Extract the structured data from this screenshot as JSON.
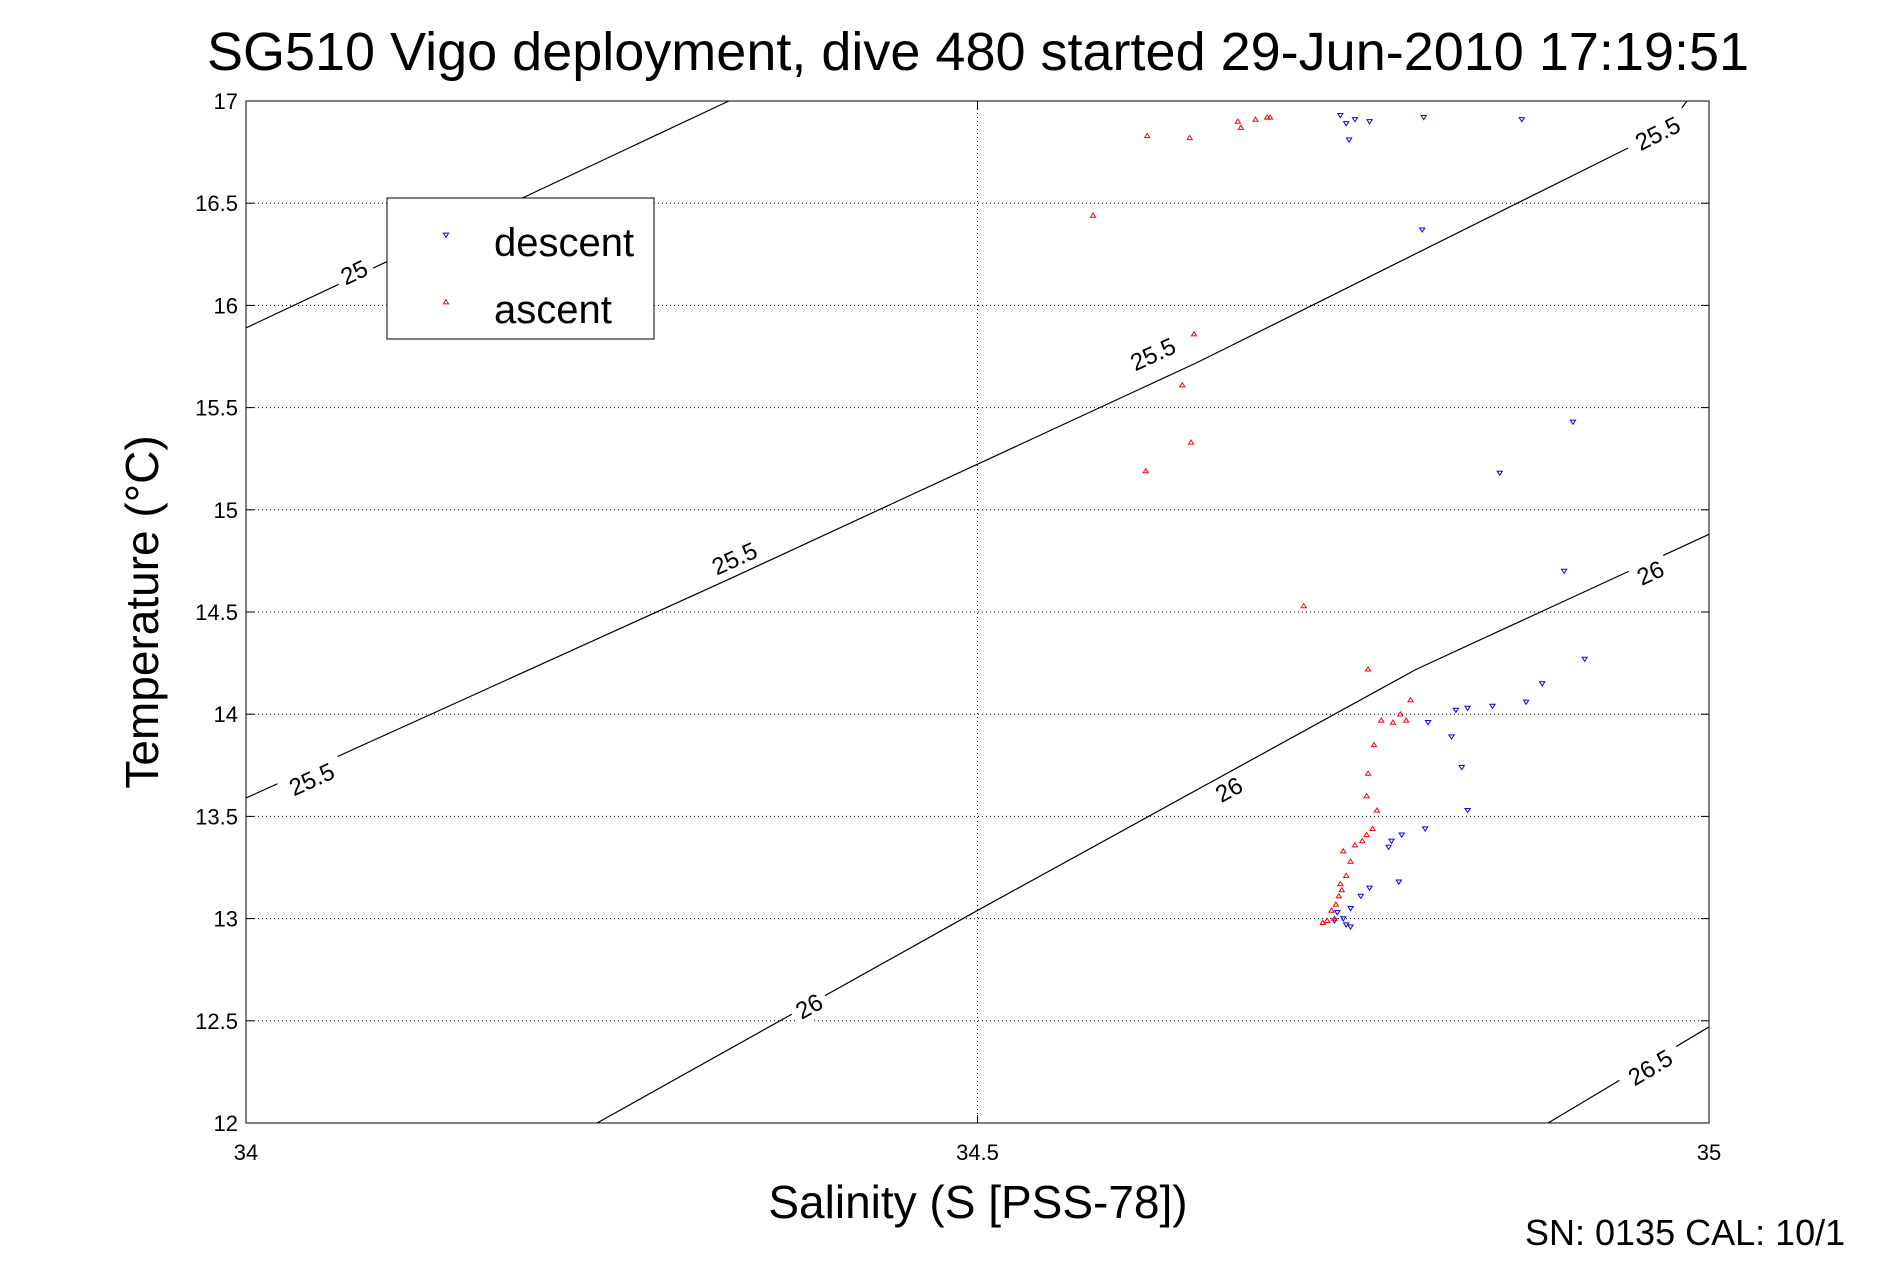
{
  "chart_data": {
    "type": "scatter",
    "title": "SG510 Vigo deployment, dive 480 started 29-Jun-2010 17:19:51",
    "xlabel": "Salinity (S [PSS-78])",
    "ylabel": "Temperature (°C)",
    "xlim": [
      34,
      35
    ],
    "ylim": [
      12,
      17
    ],
    "xticks": [
      "34",
      "34.5",
      "35"
    ],
    "yticks": [
      "12",
      "12.5",
      "13",
      "13.5",
      "14",
      "14.5",
      "15",
      "15.5",
      "16",
      "16.5",
      "17"
    ],
    "grid": true,
    "legend_position": "top-left",
    "footer": "SN: 0135  CAL: 10/1",
    "series": [
      {
        "name": "descent",
        "color": "#0000ff",
        "marker": "triangle-down",
        "points": [
          [
            34.748,
            16.93
          ],
          [
            34.758,
            16.91
          ],
          [
            34.752,
            16.89
          ],
          [
            34.768,
            16.9
          ],
          [
            34.754,
            16.81
          ],
          [
            34.805,
            16.92
          ],
          [
            34.872,
            16.91
          ],
          [
            34.804,
            16.37
          ],
          [
            34.907,
            15.43
          ],
          [
            34.857,
            15.18
          ],
          [
            34.901,
            14.7
          ],
          [
            34.915,
            14.27
          ],
          [
            34.886,
            14.15
          ],
          [
            34.875,
            14.06
          ],
          [
            34.852,
            14.04
          ],
          [
            34.835,
            14.03
          ],
          [
            34.827,
            14.02
          ],
          [
            34.808,
            13.96
          ],
          [
            34.824,
            13.89
          ],
          [
            34.831,
            13.74
          ],
          [
            34.835,
            13.53
          ],
          [
            34.806,
            13.44
          ],
          [
            34.79,
            13.41
          ],
          [
            34.783,
            13.38
          ],
          [
            34.781,
            13.35
          ],
          [
            34.788,
            13.18
          ],
          [
            34.768,
            13.15
          ],
          [
            34.762,
            13.11
          ],
          [
            34.755,
            13.05
          ],
          [
            34.746,
            13.03
          ],
          [
            34.75,
            13.0
          ],
          [
            34.744,
            12.99
          ],
          [
            34.752,
            12.97
          ],
          [
            34.755,
            12.96
          ]
        ]
      },
      {
        "name": "ascent",
        "color": "#ff0000",
        "marker": "triangle-up",
        "points": [
          [
            34.616,
            16.83
          ],
          [
            34.645,
            16.82
          ],
          [
            34.678,
            16.9
          ],
          [
            34.68,
            16.87
          ],
          [
            34.69,
            16.91
          ],
          [
            34.698,
            16.92
          ],
          [
            34.7,
            16.92
          ],
          [
            34.579,
            16.44
          ],
          [
            34.648,
            15.86
          ],
          [
            34.64,
            15.61
          ],
          [
            34.646,
            15.33
          ],
          [
            34.615,
            15.19
          ],
          [
            34.723,
            14.53
          ],
          [
            34.767,
            14.22
          ],
          [
            34.796,
            14.07
          ],
          [
            34.789,
            14.0
          ],
          [
            34.793,
            13.97
          ],
          [
            34.776,
            13.97
          ],
          [
            34.784,
            13.96
          ],
          [
            34.771,
            13.85
          ],
          [
            34.767,
            13.71
          ],
          [
            34.766,
            13.6
          ],
          [
            34.773,
            13.53
          ],
          [
            34.77,
            13.44
          ],
          [
            34.766,
            13.41
          ],
          [
            34.763,
            13.38
          ],
          [
            34.758,
            13.36
          ],
          [
            34.75,
            13.33
          ],
          [
            34.755,
            13.28
          ],
          [
            34.752,
            13.21
          ],
          [
            34.748,
            13.17
          ],
          [
            34.749,
            13.14
          ],
          [
            34.747,
            13.11
          ],
          [
            34.745,
            13.07
          ],
          [
            34.742,
            13.04
          ],
          [
            34.744,
            13.0
          ],
          [
            34.739,
            12.99
          ],
          [
            34.736,
            12.98
          ]
        ]
      }
    ],
    "isopycnals": [
      {
        "label": "25",
        "label_positions": [
          [
            34.074,
            16.16
          ]
        ],
        "points": [
          [
            34.0,
            15.89
          ],
          [
            34.33,
            17.0
          ]
        ]
      },
      {
        "label": "25.5",
        "label_positions": [
          [
            34.965,
            16.84
          ],
          [
            34.62,
            15.76
          ],
          [
            34.334,
            14.76
          ],
          [
            34.045,
            13.68
          ]
        ],
        "points": [
          [
            34.0,
            13.59
          ],
          [
            34.33,
            14.66
          ],
          [
            34.65,
            15.72
          ],
          [
            34.97,
            16.86
          ],
          [
            34.985,
            17.0
          ]
        ]
      },
      {
        "label": "26",
        "label_positions": [
          [
            34.96,
            14.69
          ],
          [
            34.672,
            13.63
          ],
          [
            34.385,
            12.57
          ]
        ],
        "points": [
          [
            34.24,
            12.0
          ],
          [
            34.5,
            13.04
          ],
          [
            34.8,
            14.22
          ],
          [
            35.0,
            14.88
          ]
        ]
      },
      {
        "label": "26.5",
        "label_positions": [
          [
            34.96,
            12.27
          ]
        ],
        "points": [
          [
            34.89,
            12.0
          ],
          [
            35.0,
            12.47
          ]
        ]
      }
    ]
  }
}
